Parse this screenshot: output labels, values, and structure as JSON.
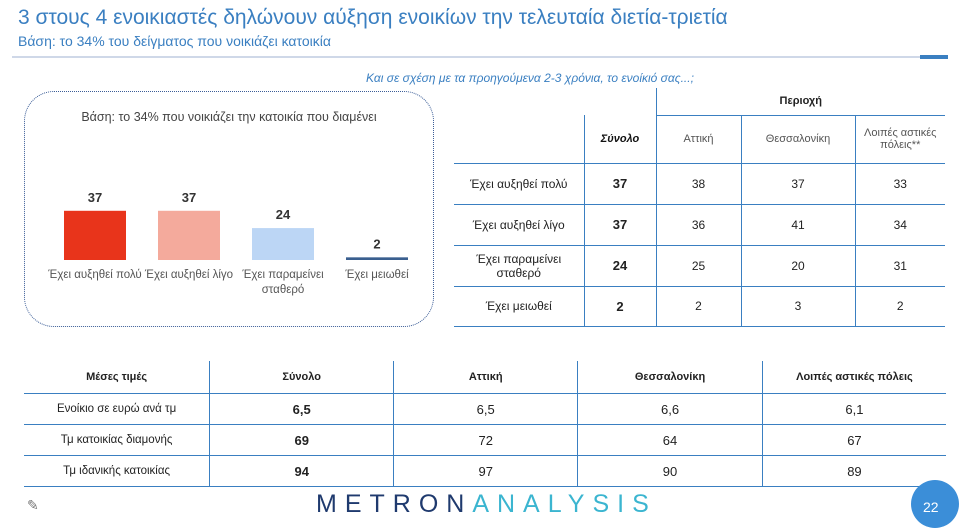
{
  "header": {
    "title": "3 στους 4 ενοικιαστές δηλώνουν αύξηση ενοικίων την τελευταία διετία-τριετία",
    "subtitle": "Βάση: το 34% του δείγματος που νοικιάζει κατοικία"
  },
  "question": "Και σε σχέση με τα προηγούμενα 2-3 χρόνια, το ενοίκιό σας...;",
  "chart_data": {
    "type": "bar",
    "title": "Βάση: το 34% που νοικιάζει την κατοικία που διαμένει",
    "categories": [
      "Έχει αυξηθεί πολύ",
      "Έχει αυξηθεί λίγο",
      "Έχει παραμείνει σταθερό",
      "Έχει μειωθεί"
    ],
    "category_lines": [
      [
        "Έχει αυξηθεί πολύ"
      ],
      [
        "Έχει αυξηθεί λίγο"
      ],
      [
        "Έχει παραμείνει",
        "σταθερό"
      ],
      [
        "Έχει μειωθεί"
      ]
    ],
    "values": [
      37,
      37,
      24,
      2
    ],
    "colors": [
      "#e8341b",
      "#f4aa9c",
      "#bcd6f5",
      "#3a5f8f"
    ],
    "ylim": [
      0,
      100
    ],
    "data_labels": true,
    "grid": false
  },
  "cross_table": {
    "region_header": "Περιοχή",
    "columns": [
      "Σύνολο",
      "Αττική",
      "Θεσσαλονίκη",
      "Λοιπές αστικές πόλεις**"
    ],
    "rows": [
      {
        "label": "Έχει αυξηθεί πολύ",
        "values": [
          "37",
          "38",
          "37",
          "33"
        ]
      },
      {
        "label": "Έχει αυξηθεί λίγο",
        "values": [
          "37",
          "36",
          "41",
          "34"
        ]
      },
      {
        "label": "Έχει παραμείνει σταθερό",
        "values": [
          "24",
          "25",
          "20",
          "31"
        ]
      },
      {
        "label": "Έχει μειωθεί",
        "values": [
          "2",
          "2",
          "3",
          "2"
        ]
      }
    ]
  },
  "means_table": {
    "headers": [
      "Μέσες τιμές",
      "Σύνολο",
      "Αττική",
      "Θεσσαλονίκη",
      "Λοιπές αστικές πόλεις"
    ],
    "rows": [
      {
        "label": "Ενοίκιο σε ευρώ ανά τμ",
        "values": [
          "6,5",
          "6,5",
          "6,6",
          "6,1"
        ]
      },
      {
        "label": "Τμ κατοικίας διαμονής",
        "values": [
          "69",
          "72",
          "64",
          "67"
        ]
      },
      {
        "label": "Τμ ιδανικής κατοικίας",
        "values": [
          "94",
          "97",
          "90",
          "89"
        ]
      }
    ]
  },
  "footer": {
    "logo_part1": "METRON",
    "logo_part2": "ANALYSIS",
    "page_number": "22"
  },
  "colors": {
    "accent": "#3a7fc1",
    "table_lines": "#3a7fc1",
    "logo_dark": "#1f3a6e",
    "logo_light": "#3bb5d0"
  }
}
